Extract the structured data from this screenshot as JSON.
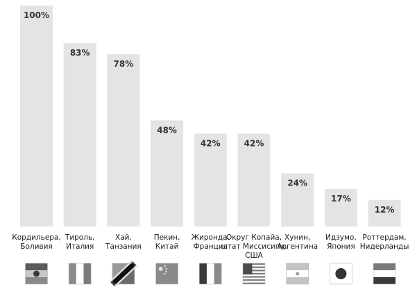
{
  "chart_data": {
    "type": "bar",
    "categories": [
      [
        "Кордильера,",
        "Боливия"
      ],
      [
        "Тироль,",
        "Италия"
      ],
      [
        "Хай,",
        "Танзания"
      ],
      [
        "Пекин,",
        "Китай"
      ],
      [
        "Жиронда,",
        "Франция"
      ],
      [
        "Округ Копайа,",
        "штат Миссисипи,",
        "США"
      ],
      [
        "Хунин,",
        "Аргентина"
      ],
      [
        "Идзумо,",
        "Япония"
      ],
      [
        "Роттердам,",
        "Нидерланды"
      ]
    ],
    "values": [
      100,
      83,
      78,
      48,
      42,
      42,
      24,
      17,
      12
    ],
    "value_labels": [
      "100%",
      "83%",
      "78%",
      "48%",
      "42%",
      "42%",
      "24%",
      "17%",
      "12%"
    ],
    "flags": [
      "bolivia-flag-icon",
      "italy-flag-icon",
      "tanzania-flag-icon",
      "china-flag-icon",
      "france-flag-icon",
      "usa-flag-icon",
      "argentina-flag-icon",
      "japan-flag-icon",
      "netherlands-flag-icon"
    ],
    "ylim": [
      0,
      100
    ],
    "grid": false,
    "colors": {
      "bar": "#e4e4e4",
      "text": "#1a1a1a"
    }
  }
}
